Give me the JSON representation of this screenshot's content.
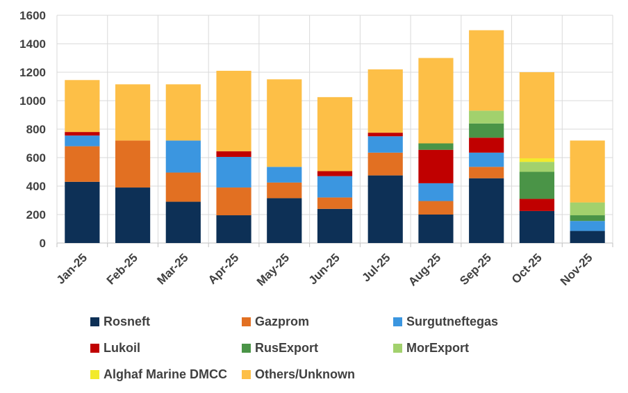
{
  "chart_data": {
    "type": "bar",
    "stacked": true,
    "title": "",
    "xlabel": "",
    "ylabel": "",
    "ylim": [
      0,
      1600
    ],
    "yticks": [
      0,
      200,
      400,
      600,
      800,
      1000,
      1200,
      1400,
      1600
    ],
    "grid": true,
    "legend_position": "bottom",
    "categories": [
      "Jan-25",
      "Feb-25",
      "Mar-25",
      "Apr-25",
      "May-25",
      "Jun-25",
      "Jul-25",
      "Aug-25",
      "Sep-25",
      "Oct-25",
      "Nov-25"
    ],
    "series": [
      {
        "name": "Rosneft",
        "color": "#0d3056",
        "values": [
          430,
          390,
          290,
          195,
          315,
          240,
          475,
          200,
          455,
          225,
          85
        ]
      },
      {
        "name": "Gazprom",
        "color": "#e27022",
        "values": [
          250,
          330,
          205,
          195,
          110,
          80,
          160,
          95,
          80,
          0,
          0
        ]
      },
      {
        "name": "Surgutneftegas",
        "color": "#3b96e0",
        "values": [
          75,
          0,
          225,
          215,
          110,
          150,
          115,
          125,
          100,
          0,
          70
        ]
      },
      {
        "name": "Lukoil",
        "color": "#c00000",
        "values": [
          25,
          0,
          0,
          40,
          0,
          35,
          25,
          235,
          105,
          85,
          0
        ]
      },
      {
        "name": "RusExport",
        "color": "#4a9447",
        "values": [
          0,
          0,
          0,
          0,
          0,
          0,
          0,
          45,
          100,
          190,
          40
        ]
      },
      {
        "name": "MorExport",
        "color": "#a2d16d",
        "values": [
          0,
          0,
          0,
          0,
          0,
          0,
          0,
          0,
          90,
          70,
          90
        ]
      },
      {
        "name": "Alghaf Marine DMCC",
        "color": "#f2ea2c",
        "values": [
          0,
          0,
          0,
          0,
          0,
          0,
          0,
          0,
          0,
          25,
          0
        ]
      },
      {
        "name": "Others/Unknown",
        "color": "#fdbf47",
        "values": [
          365,
          395,
          395,
          565,
          615,
          520,
          445,
          600,
          565,
          605,
          435
        ]
      }
    ]
  }
}
